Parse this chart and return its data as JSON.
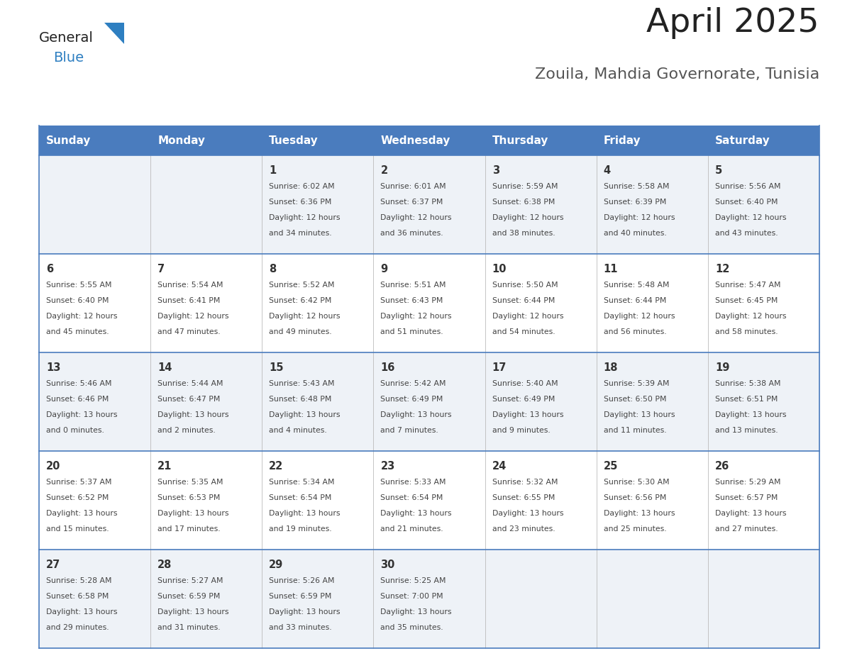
{
  "title": "April 2025",
  "subtitle": "Zouila, Mahdia Governorate, Tunisia",
  "header_bg_color": "#4a7cbe",
  "header_text_color": "#ffffff",
  "cell_bg_color_odd": "#eef2f7",
  "cell_bg_color_even": "#ffffff",
  "day_number_color": "#333333",
  "cell_text_color": "#444444",
  "grid_line_color": "#4a7cbe",
  "days_of_week": [
    "Sunday",
    "Monday",
    "Tuesday",
    "Wednesday",
    "Thursday",
    "Friday",
    "Saturday"
  ],
  "weeks": [
    [
      {
        "day": "",
        "sunrise": "",
        "sunset": "",
        "daylight": ""
      },
      {
        "day": "",
        "sunrise": "",
        "sunset": "",
        "daylight": ""
      },
      {
        "day": "1",
        "sunrise": "6:02 AM",
        "sunset": "6:36 PM",
        "daylight": "12 hours\nand 34 minutes."
      },
      {
        "day": "2",
        "sunrise": "6:01 AM",
        "sunset": "6:37 PM",
        "daylight": "12 hours\nand 36 minutes."
      },
      {
        "day": "3",
        "sunrise": "5:59 AM",
        "sunset": "6:38 PM",
        "daylight": "12 hours\nand 38 minutes."
      },
      {
        "day": "4",
        "sunrise": "5:58 AM",
        "sunset": "6:39 PM",
        "daylight": "12 hours\nand 40 minutes."
      },
      {
        "day": "5",
        "sunrise": "5:56 AM",
        "sunset": "6:40 PM",
        "daylight": "12 hours\nand 43 minutes."
      }
    ],
    [
      {
        "day": "6",
        "sunrise": "5:55 AM",
        "sunset": "6:40 PM",
        "daylight": "12 hours\nand 45 minutes."
      },
      {
        "day": "7",
        "sunrise": "5:54 AM",
        "sunset": "6:41 PM",
        "daylight": "12 hours\nand 47 minutes."
      },
      {
        "day": "8",
        "sunrise": "5:52 AM",
        "sunset": "6:42 PM",
        "daylight": "12 hours\nand 49 minutes."
      },
      {
        "day": "9",
        "sunrise": "5:51 AM",
        "sunset": "6:43 PM",
        "daylight": "12 hours\nand 51 minutes."
      },
      {
        "day": "10",
        "sunrise": "5:50 AM",
        "sunset": "6:44 PM",
        "daylight": "12 hours\nand 54 minutes."
      },
      {
        "day": "11",
        "sunrise": "5:48 AM",
        "sunset": "6:44 PM",
        "daylight": "12 hours\nand 56 minutes."
      },
      {
        "day": "12",
        "sunrise": "5:47 AM",
        "sunset": "6:45 PM",
        "daylight": "12 hours\nand 58 minutes."
      }
    ],
    [
      {
        "day": "13",
        "sunrise": "5:46 AM",
        "sunset": "6:46 PM",
        "daylight": "13 hours\nand 0 minutes."
      },
      {
        "day": "14",
        "sunrise": "5:44 AM",
        "sunset": "6:47 PM",
        "daylight": "13 hours\nand 2 minutes."
      },
      {
        "day": "15",
        "sunrise": "5:43 AM",
        "sunset": "6:48 PM",
        "daylight": "13 hours\nand 4 minutes."
      },
      {
        "day": "16",
        "sunrise": "5:42 AM",
        "sunset": "6:49 PM",
        "daylight": "13 hours\nand 7 minutes."
      },
      {
        "day": "17",
        "sunrise": "5:40 AM",
        "sunset": "6:49 PM",
        "daylight": "13 hours\nand 9 minutes."
      },
      {
        "day": "18",
        "sunrise": "5:39 AM",
        "sunset": "6:50 PM",
        "daylight": "13 hours\nand 11 minutes."
      },
      {
        "day": "19",
        "sunrise": "5:38 AM",
        "sunset": "6:51 PM",
        "daylight": "13 hours\nand 13 minutes."
      }
    ],
    [
      {
        "day": "20",
        "sunrise": "5:37 AM",
        "sunset": "6:52 PM",
        "daylight": "13 hours\nand 15 minutes."
      },
      {
        "day": "21",
        "sunrise": "5:35 AM",
        "sunset": "6:53 PM",
        "daylight": "13 hours\nand 17 minutes."
      },
      {
        "day": "22",
        "sunrise": "5:34 AM",
        "sunset": "6:54 PM",
        "daylight": "13 hours\nand 19 minutes."
      },
      {
        "day": "23",
        "sunrise": "5:33 AM",
        "sunset": "6:54 PM",
        "daylight": "13 hours\nand 21 minutes."
      },
      {
        "day": "24",
        "sunrise": "5:32 AM",
        "sunset": "6:55 PM",
        "daylight": "13 hours\nand 23 minutes."
      },
      {
        "day": "25",
        "sunrise": "5:30 AM",
        "sunset": "6:56 PM",
        "daylight": "13 hours\nand 25 minutes."
      },
      {
        "day": "26",
        "sunrise": "5:29 AM",
        "sunset": "6:57 PM",
        "daylight": "13 hours\nand 27 minutes."
      }
    ],
    [
      {
        "day": "27",
        "sunrise": "5:28 AM",
        "sunset": "6:58 PM",
        "daylight": "13 hours\nand 29 minutes."
      },
      {
        "day": "28",
        "sunrise": "5:27 AM",
        "sunset": "6:59 PM",
        "daylight": "13 hours\nand 31 minutes."
      },
      {
        "day": "29",
        "sunrise": "5:26 AM",
        "sunset": "6:59 PM",
        "daylight": "13 hours\nand 33 minutes."
      },
      {
        "day": "30",
        "sunrise": "5:25 AM",
        "sunset": "7:00 PM",
        "daylight": "13 hours\nand 35 minutes."
      },
      {
        "day": "",
        "sunrise": "",
        "sunset": "",
        "daylight": ""
      },
      {
        "day": "",
        "sunrise": "",
        "sunset": "",
        "daylight": ""
      },
      {
        "day": "",
        "sunrise": "",
        "sunset": "",
        "daylight": ""
      }
    ]
  ]
}
